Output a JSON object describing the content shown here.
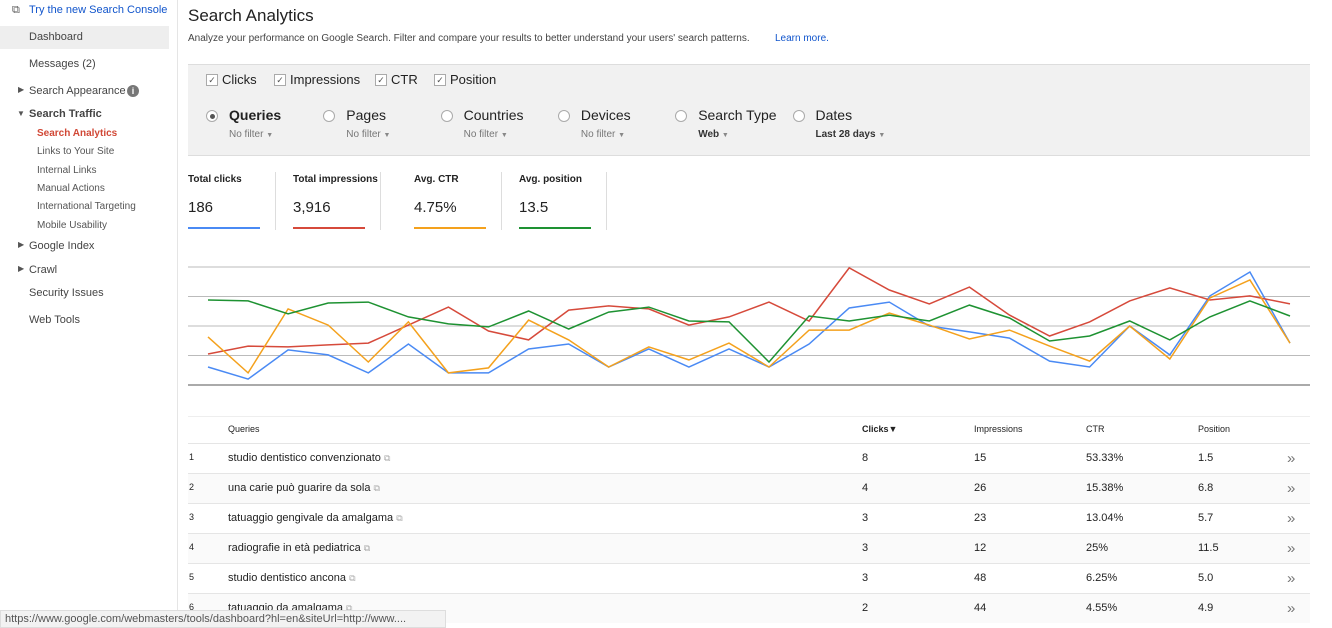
{
  "sidebar": {
    "top_link": "Try the new Search Console",
    "items": [
      "Dashboard",
      "Messages (2)",
      "Search Appearance",
      "Search Traffic",
      "Google Index",
      "Crawl",
      "Security Issues",
      "Web Tools"
    ],
    "sub_items": [
      "Search Analytics",
      "Links to Your Site",
      "Internal Links",
      "Manual Actions",
      "International Targeting",
      "Mobile Usability"
    ]
  },
  "header": {
    "title": "Search Analytics",
    "description": "Analyze your performance on Google Search. Filter and compare your results to better understand your users' search patterns.",
    "link": "Learn more."
  },
  "groupings": [
    {
      "label": "Queries",
      "filter": "No filter"
    },
    {
      "label": "Pages",
      "filter": "No filter"
    },
    {
      "label": "Countries",
      "filter": "No filter"
    },
    {
      "label": "Devices",
      "filter": "No filter"
    },
    {
      "label": "Search Type",
      "filter": "Web"
    },
    {
      "label": "Dates",
      "filter": "Last 28 days"
    }
  ],
  "metrics": [
    {
      "label": "Total clicks",
      "value": "186"
    },
    {
      "label": "Total impressions",
      "value": "3,916"
    },
    {
      "label": "Avg. CTR",
      "value": "4.75%"
    },
    {
      "label": "Avg. position",
      "value": "13.5"
    }
  ],
  "chart": {
    "type": "line",
    "ylim": [
      0,
      4
    ],
    "grid_lines": [
      0,
      1,
      2,
      3,
      4
    ],
    "series": [
      {
        "name": "Clicks",
        "color": "#4a8af4",
        "values": [
          0.61,
          0.2,
          1.19,
          1.02,
          0.41,
          1.39,
          0.41,
          0.41,
          1.22,
          1.39,
          0.61,
          1.22,
          0.61,
          1.22,
          0.61,
          1.39,
          2.61,
          2.81,
          2,
          1.8,
          1.59,
          0.81,
          0.61,
          2,
          1.02,
          3.02,
          3.83,
          1.42
        ]
      },
      {
        "name": "Impressions",
        "color": "#d64a3b",
        "values": [
          1.05,
          1.32,
          1.29,
          1.36,
          1.42,
          2.03,
          2.64,
          1.83,
          1.53,
          2.54,
          2.68,
          2.58,
          2.03,
          2.31,
          2.81,
          2.17,
          3.97,
          3.22,
          2.75,
          3.32,
          2.37,
          1.66,
          2.14,
          2.85,
          3.29,
          2.88,
          3.02,
          2.75
        ]
      },
      {
        "name": "CTR",
        "color": "#f4a11d",
        "values": [
          1.63,
          0.41,
          2.58,
          2.03,
          0.78,
          2.14,
          0.41,
          0.58,
          2.2,
          1.53,
          0.61,
          1.29,
          0.85,
          1.42,
          0.61,
          1.86,
          1.86,
          2.44,
          2.03,
          1.56,
          1.86,
          1.32,
          0.81,
          2,
          0.88,
          2.95,
          3.56,
          1.42
        ]
      },
      {
        "name": "Position",
        "color": "#1e9232",
        "values": [
          2.88,
          2.85,
          2.41,
          2.78,
          2.81,
          2.31,
          2.07,
          1.97,
          2.51,
          1.9,
          2.47,
          2.64,
          2.17,
          2.14,
          0.78,
          2.34,
          2.17,
          2.37,
          2.17,
          2.71,
          2.27,
          1.49,
          1.66,
          2.17,
          1.53,
          2.31,
          2.85,
          2.34
        ]
      }
    ]
  },
  "table": {
    "columns": [
      "Queries",
      "Clicks▼",
      "Impressions",
      "CTR",
      "Position"
    ],
    "rows": [
      [
        "1",
        "studio dentistico convenzionato",
        "8",
        "15",
        "53.33%",
        "1.5"
      ],
      [
        "2",
        "una carie può guarire da sola",
        "4",
        "26",
        "15.38%",
        "6.8"
      ],
      [
        "3",
        "tatuaggio gengivale da amalgama",
        "3",
        "23",
        "13.04%",
        "5.7"
      ],
      [
        "4",
        "radiografie in età pediatrica",
        "3",
        "12",
        "25%",
        "11.5"
      ],
      [
        "5",
        "studio dentistico ancona",
        "3",
        "48",
        "6.25%",
        "5.0"
      ],
      [
        "6",
        "tatuaggio da amalgama",
        "2",
        "44",
        "4.55%",
        "4.9"
      ]
    ]
  },
  "status_bar": "https://www.google.com/webmasters/tools/dashboard?hl=en&siteUrl=http://www...."
}
